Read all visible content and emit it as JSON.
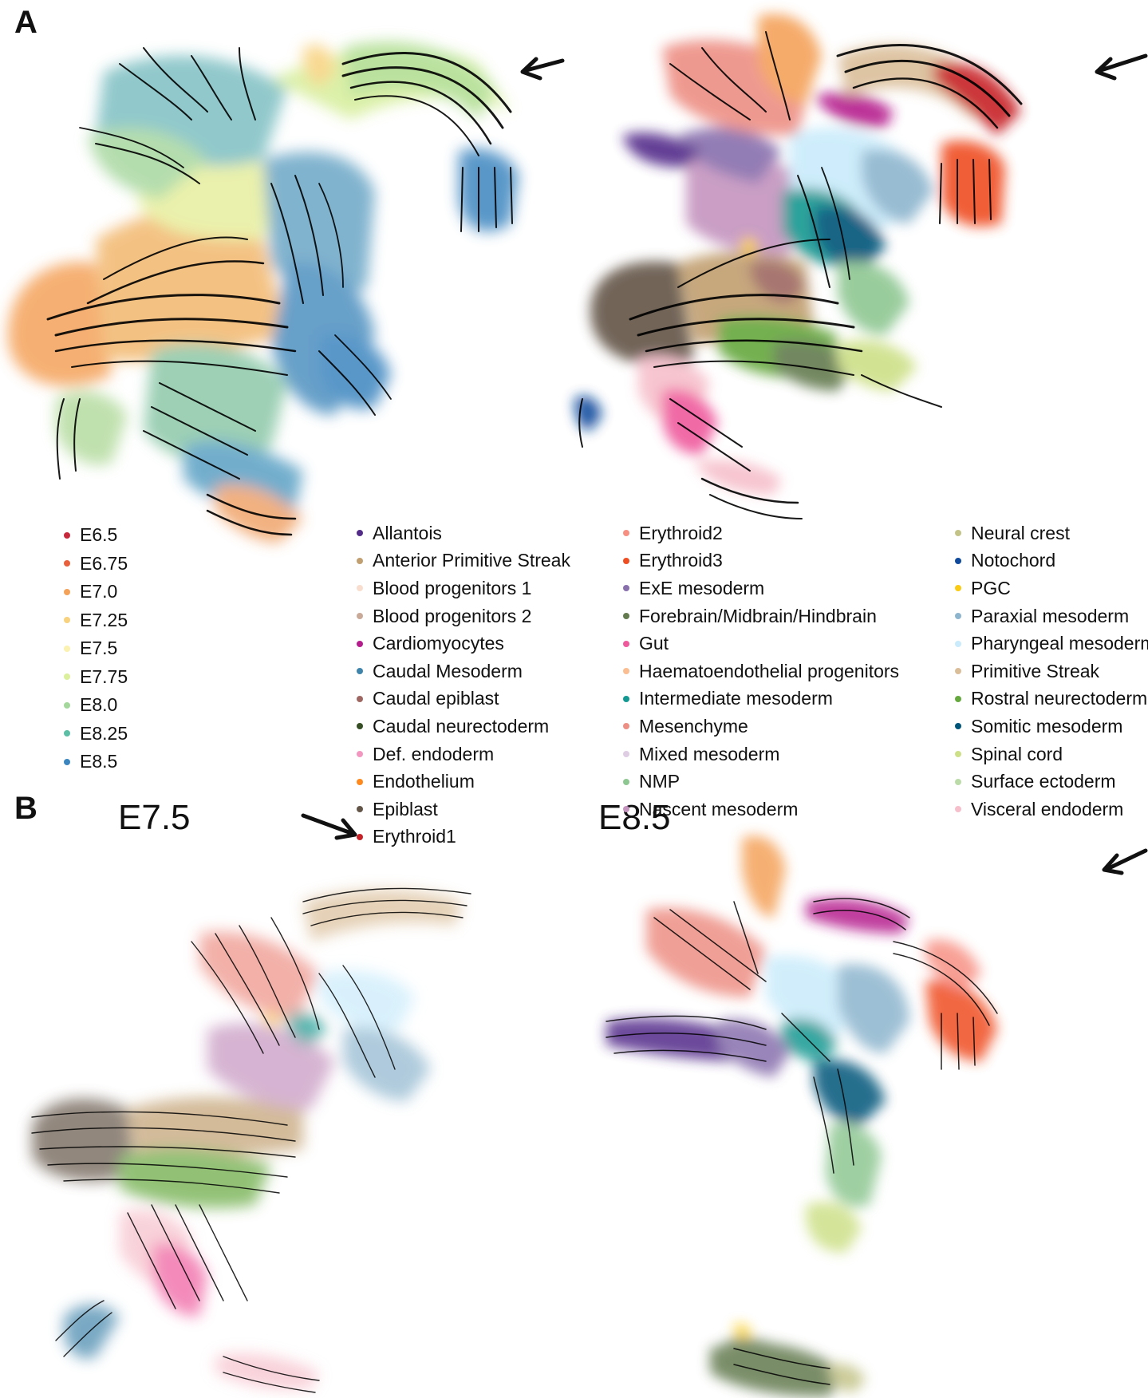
{
  "panels": [
    {
      "letter": "A"
    },
    {
      "letter": "B"
    }
  ],
  "stage_labels": [
    "E7.5",
    "E8.5"
  ],
  "legend_time": [
    {
      "label": "E6.5",
      "color": "#c8283c"
    },
    {
      "label": "E6.75",
      "color": "#e8603c"
    },
    {
      "label": "E7.0",
      "color": "#f4a25a"
    },
    {
      "label": "E7.25",
      "color": "#f8d27e"
    },
    {
      "label": "E7.5",
      "color": "#fbf1b0"
    },
    {
      "label": "E7.75",
      "color": "#dcef9c"
    },
    {
      "label": "E8.0",
      "color": "#a4d79c"
    },
    {
      "label": "E8.25",
      "color": "#5cbea4"
    },
    {
      "label": "E8.5",
      "color": "#3c86c0"
    }
  ],
  "legend_celltypes": [
    [
      {
        "label": "Allantois",
        "color": "#532c8a"
      },
      {
        "label": "Anterior Primitive Streak",
        "color": "#c19f70"
      },
      {
        "label": "Blood progenitors 1",
        "color": "#f9decf"
      },
      {
        "label": "Blood progenitors 2",
        "color": "#c9a997"
      },
      {
        "label": "Cardiomyocytes",
        "color": "#b51d8d"
      },
      {
        "label": "Caudal Mesoderm",
        "color": "#3f84aa"
      },
      {
        "label": "Caudal epiblast",
        "color": "#9e6762"
      },
      {
        "label": "Caudal neurectoderm",
        "color": "#354e23"
      },
      {
        "label": "Def. endoderm",
        "color": "#f397c0"
      },
      {
        "label": "Endothelium",
        "color": "#ff891c"
      },
      {
        "label": "Epiblast",
        "color": "#635547"
      },
      {
        "label": "Erythroid1",
        "color": "#c72228"
      }
    ],
    [
      {
        "label": "Erythroid2",
        "color": "#f79083"
      },
      {
        "label": "Erythroid3",
        "color": "#ef4e22"
      },
      {
        "label": "ExE mesoderm",
        "color": "#8870ad"
      },
      {
        "label": "Forebrain/Midbrain/Hindbrain",
        "color": "#647a4f"
      },
      {
        "label": "Gut",
        "color": "#ef5a9d"
      },
      {
        "label": "Haematoendothelial progenitors",
        "color": "#fbbe92"
      },
      {
        "label": "Intermediate mesoderm",
        "color": "#139992"
      },
      {
        "label": "Mesenchyme",
        "color": "#ed8f84"
      },
      {
        "label": "Mixed mesoderm",
        "color": "#dfcde4"
      },
      {
        "label": "NMP",
        "color": "#8ec792"
      },
      {
        "label": "Nascent mesoderm",
        "color": "#c594bf"
      }
    ],
    [
      {
        "label": "Neural crest",
        "color": "#c3c388"
      },
      {
        "label": "Notochord",
        "color": "#0f4a9c"
      },
      {
        "label": "PGC",
        "color": "#facb12"
      },
      {
        "label": "Paraxial mesoderm",
        "color": "#8db5ce"
      },
      {
        "label": "Pharyngeal mesoderm",
        "color": "#c9ebfb"
      },
      {
        "label": "Primitive Streak",
        "color": "#dabe99"
      },
      {
        "label": "Rostral neurectoderm",
        "color": "#65a83e"
      },
      {
        "label": "Somitic mesoderm",
        "color": "#005579"
      },
      {
        "label": "Spinal cord",
        "color": "#cde088"
      },
      {
        "label": "Surface ectoderm",
        "color": "#bbdcA8"
      },
      {
        "label": "Visceral endoderm",
        "color": "#f6bfcb"
      }
    ]
  ]
}
